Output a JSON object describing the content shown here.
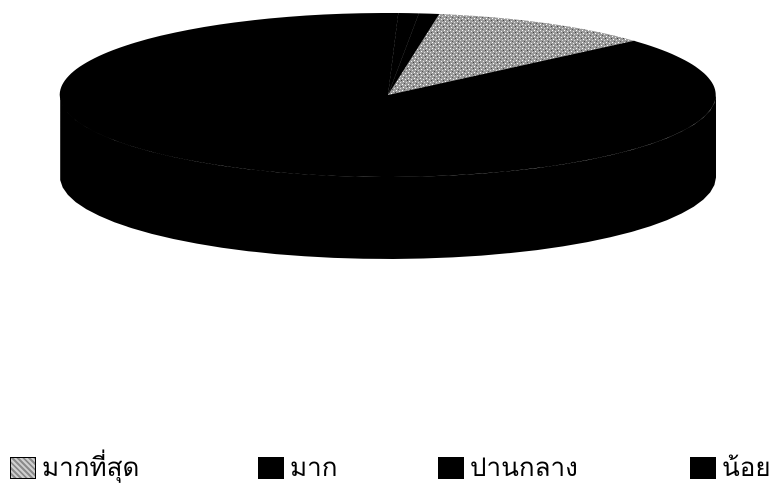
{
  "chart_data": {
    "type": "pie",
    "style": "3d",
    "categories": [
      "มากที่สุด",
      "มาก",
      "ปานกลาง",
      "น้อย"
    ],
    "values": [
      11,
      87,
      1,
      1
    ],
    "unit": "percent (estimated)",
    "legend_position": "bottom",
    "colors": [
      "#b8b8b8",
      "#000000",
      "#000000",
      "#000000"
    ]
  }
}
